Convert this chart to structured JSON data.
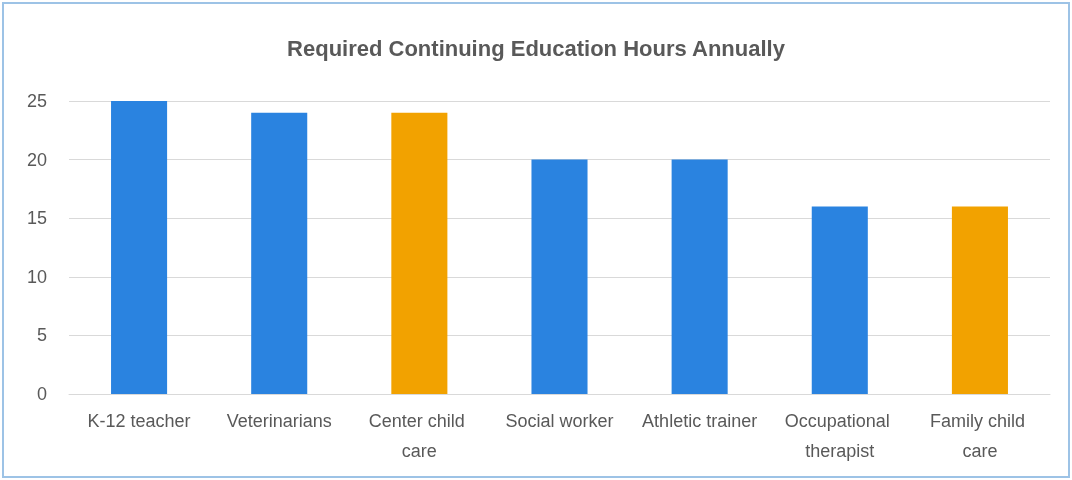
{
  "chart_data": {
    "type": "bar",
    "title": "Required Continuing Education Hours Annually",
    "categories": [
      "K-12 teacher",
      "Veterinarians",
      "Center child care",
      "Social worker",
      "Athletic trainer",
      "Occupational therapist",
      "Family child care"
    ],
    "values": [
      25,
      24,
      24,
      20,
      20,
      16,
      16
    ],
    "colors": [
      "#2a83e0",
      "#2a83e0",
      "#f2a200",
      "#2a83e0",
      "#2a83e0",
      "#2a83e0",
      "#f2a200"
    ],
    "ylim": [
      0,
      25
    ],
    "yticks": [
      0,
      5,
      10,
      15,
      20,
      25
    ],
    "grid": "y"
  }
}
